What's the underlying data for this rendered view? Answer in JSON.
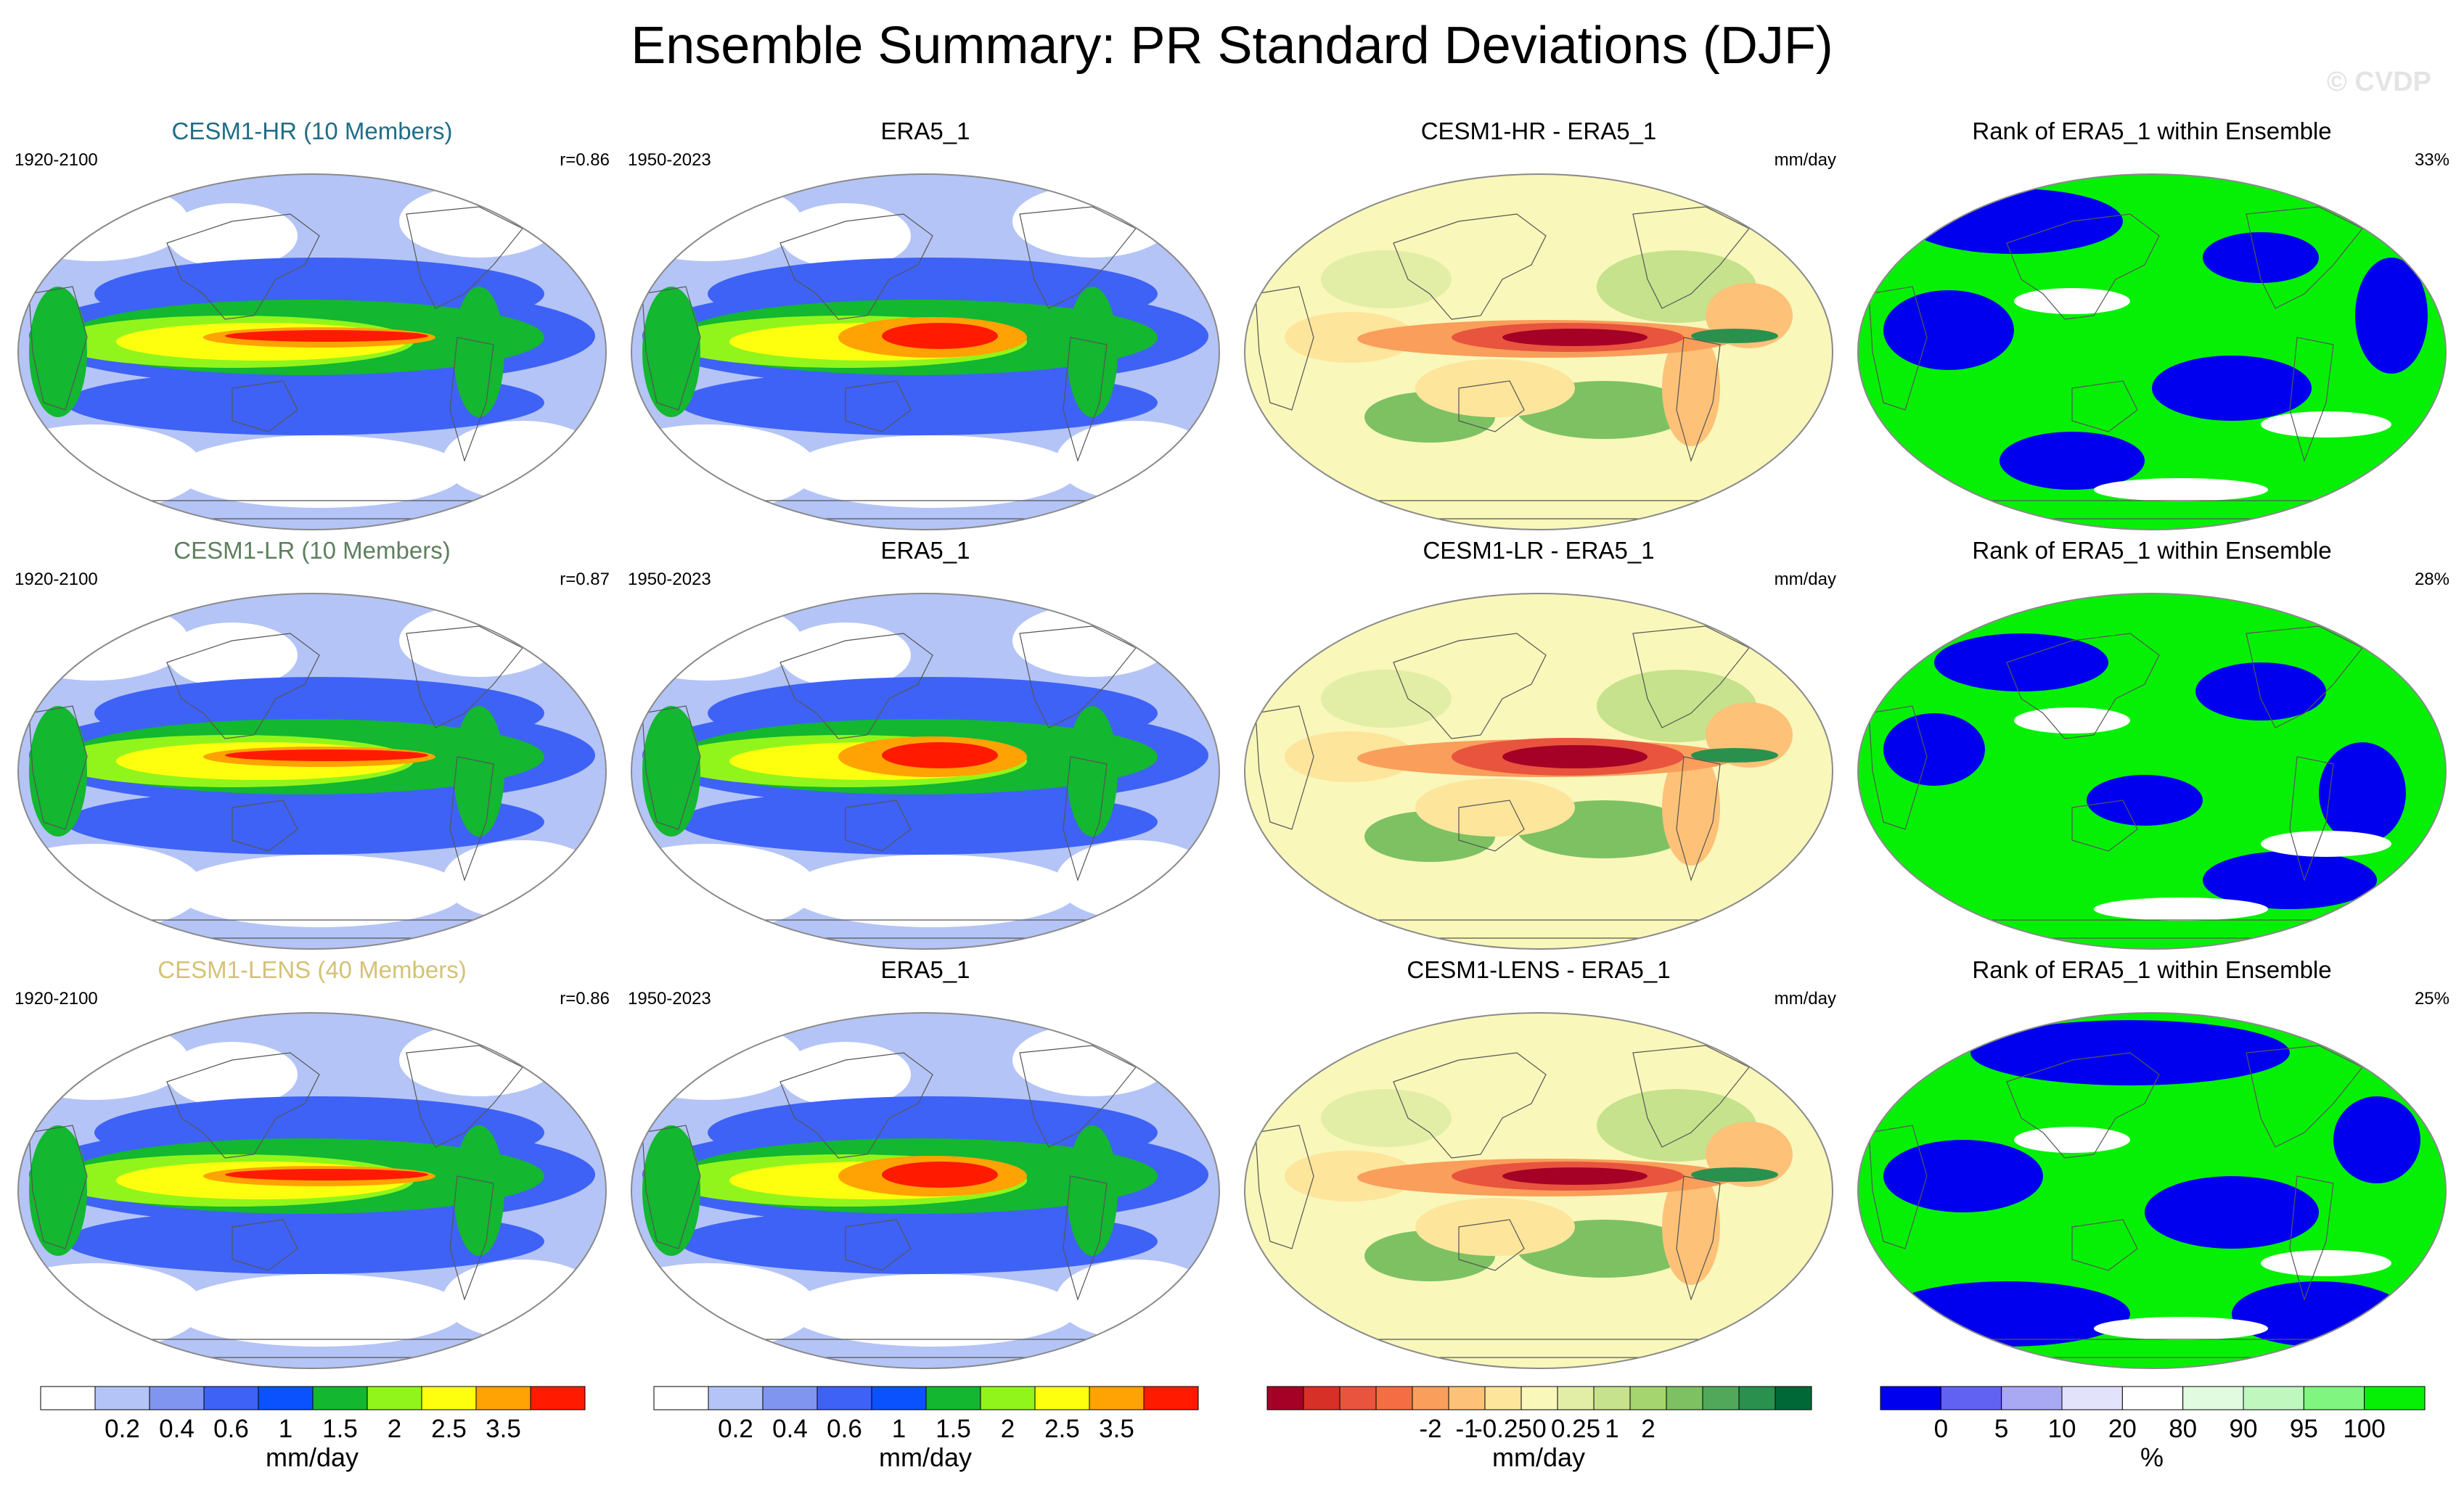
{
  "title": "Ensemble Summary: PR Standard Deviations (DJF)",
  "watermark": "© CVDP",
  "rows": [
    {
      "ensemble": {
        "title": "CESM1-HR (10 Members)",
        "title_color": "#1f6e87",
        "years": "1920-2100",
        "corr": "r=0.86"
      },
      "obs": {
        "title": "ERA5_1",
        "years": "1950-2023"
      },
      "diff": {
        "title": "CESM1-HR - ERA5_1",
        "units": "mm/day"
      },
      "rank": {
        "title": "Rank of ERA5_1 within Ensemble",
        "pct": "33%"
      }
    },
    {
      "ensemble": {
        "title": "CESM1-LR (10 Members)",
        "title_color": "#5f7f5f",
        "years": "1920-2100",
        "corr": "r=0.87"
      },
      "obs": {
        "title": "ERA5_1",
        "years": "1950-2023"
      },
      "diff": {
        "title": "CESM1-LR - ERA5_1",
        "units": "mm/day"
      },
      "rank": {
        "title": "Rank of ERA5_1 within Ensemble",
        "pct": "28%"
      }
    },
    {
      "ensemble": {
        "title": "CESM1-LENS (40 Members)",
        "title_color": "#d4c277",
        "years": "1920-2100",
        "corr": "r=0.86"
      },
      "obs": {
        "title": "ERA5_1",
        "years": "1950-2023"
      },
      "diff": {
        "title": "CESM1-LENS - ERA5_1",
        "units": "mm/day"
      },
      "rank": {
        "title": "Rank of ERA5_1 within Ensemble",
        "pct": "25%"
      }
    }
  ],
  "colorbars": {
    "stddev": {
      "unit": "mm/day",
      "colors": [
        "#ffffff",
        "#b4c4f6",
        "#7f95f0",
        "#3e62f5",
        "#0b52ff",
        "#13b730",
        "#91f51b",
        "#fdff0f",
        "#ffa203",
        "#ff1a00"
      ],
      "labels": [
        "0.2",
        "0.4",
        "0.6",
        "1",
        "1.5",
        "2",
        "2.5",
        "3.5"
      ]
    },
    "diff": {
      "unit": "mm/day",
      "colors": [
        "#a50026",
        "#d73027",
        "#e8543d",
        "#f46d43",
        "#f99e5b",
        "#fdc178",
        "#fee59c",
        "#f9f7ba",
        "#e2eea6",
        "#c6e28c",
        "#a5d56e",
        "#7dc163",
        "#51a85a",
        "#2a904e",
        "#006837"
      ],
      "labels": [
        "-2",
        "-1",
        "-0.25",
        "0",
        "0.25",
        "1",
        "2"
      ]
    },
    "rank": {
      "unit": "%",
      "colors": [
        "#0000ee",
        "#6262f2",
        "#a8a8f3",
        "#e2e2fb",
        "#ffffff",
        "#e1fbe1",
        "#bff7bf",
        "#80f680",
        "#06f006"
      ],
      "labels": [
        "0",
        "5",
        "10",
        "20",
        "80",
        "90",
        "95",
        "100"
      ]
    }
  }
}
